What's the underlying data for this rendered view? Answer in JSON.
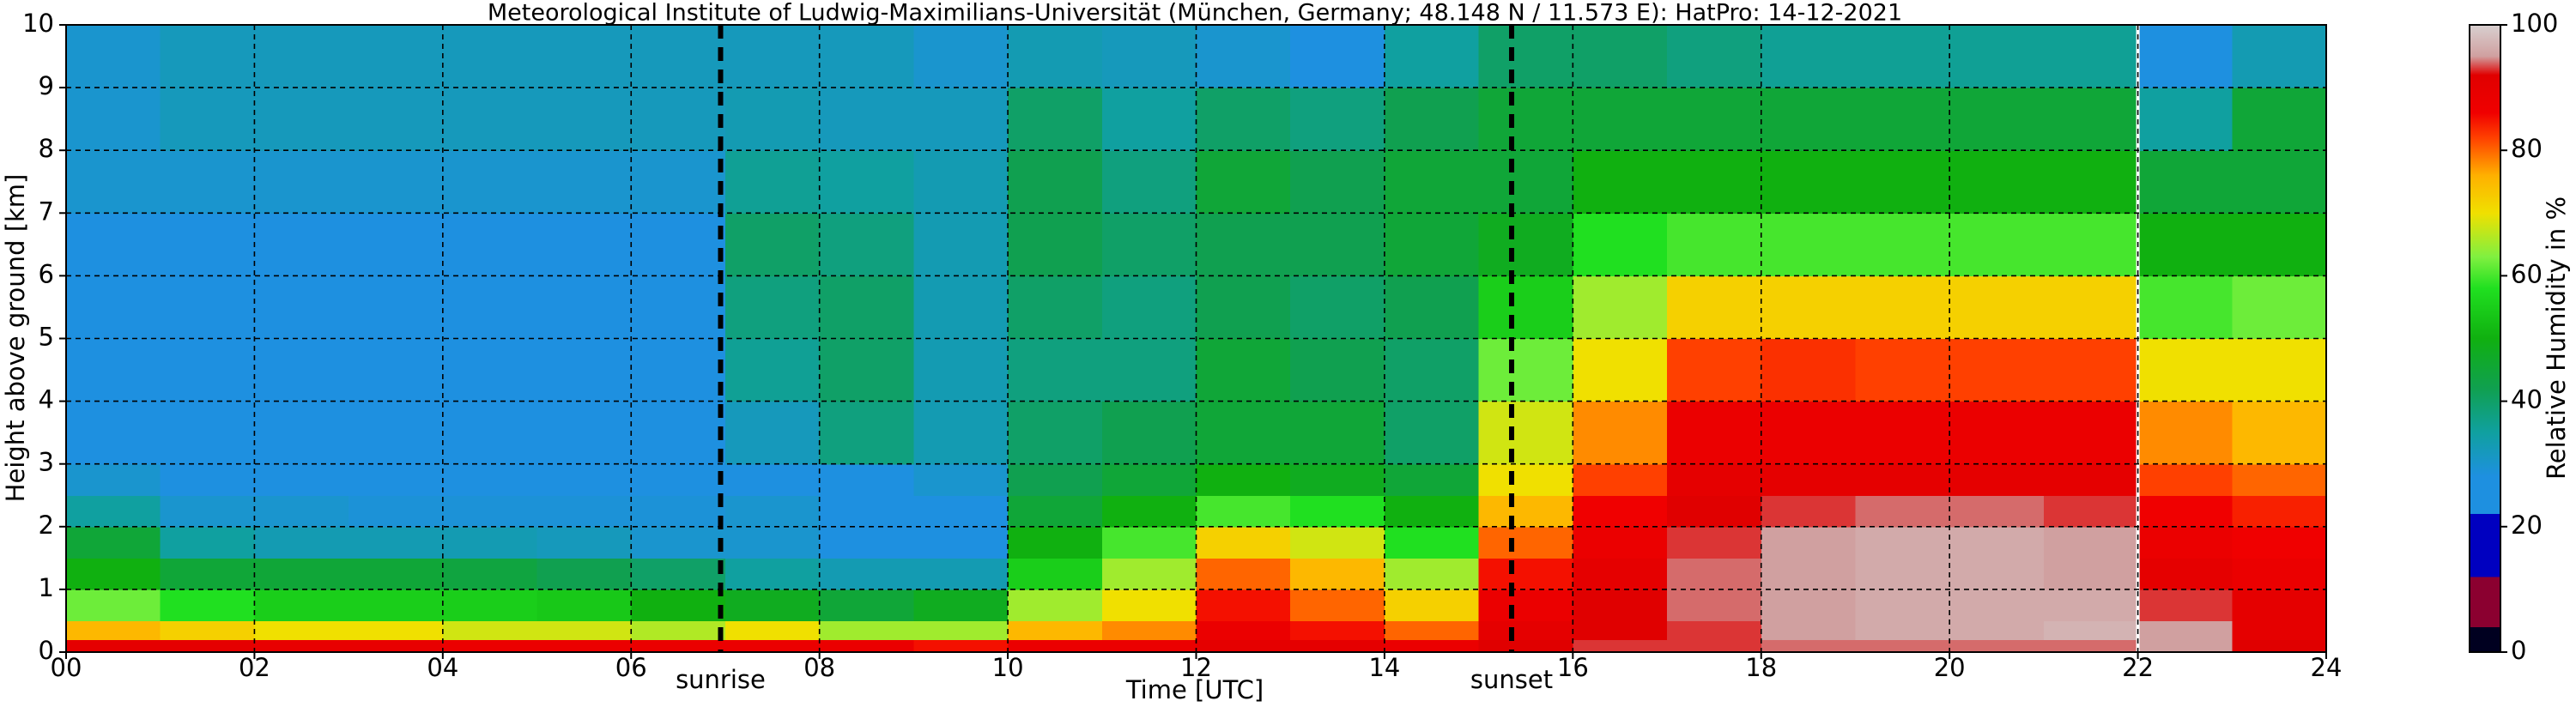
{
  "chart_data": {
    "type": "heatmap",
    "title": "Meteorological Institute of Ludwig-Maximilians-Universität (München, Germany; 48.148 N / 11.573 E):    HatPro: 14-12-2021",
    "xlabel": "Time [UTC]",
    "ylabel": "Height above ground [km]",
    "colorbar_label": "Relative Humidity in %",
    "xlim": [
      0,
      24
    ],
    "ylim": [
      0,
      10
    ],
    "clim": [
      0,
      100
    ],
    "xticks": [
      {
        "value": 0,
        "label": "00"
      },
      {
        "value": 2,
        "label": "02"
      },
      {
        "value": 4,
        "label": "04"
      },
      {
        "value": 6,
        "label": "06"
      },
      {
        "value": 8,
        "label": "08"
      },
      {
        "value": 10,
        "label": "10"
      },
      {
        "value": 12,
        "label": "12"
      },
      {
        "value": 14,
        "label": "14"
      },
      {
        "value": 16,
        "label": "16"
      },
      {
        "value": 18,
        "label": "18"
      },
      {
        "value": 20,
        "label": "20"
      },
      {
        "value": 22,
        "label": "22"
      },
      {
        "value": 24,
        "label": "24"
      }
    ],
    "yticks": [
      0,
      1,
      2,
      3,
      4,
      5,
      6,
      7,
      8,
      9,
      10
    ],
    "cticks": [
      0,
      20,
      40,
      60,
      80,
      100
    ],
    "grid": true,
    "x_edges": [
      0,
      1,
      2,
      3,
      4,
      5,
      6,
      7,
      8,
      9,
      10,
      11,
      12,
      13,
      14,
      15,
      16,
      17,
      18,
      19,
      20,
      21,
      22,
      23,
      24
    ],
    "y_edges": [
      0,
      0.2,
      0.5,
      1,
      1.5,
      2,
      2.5,
      3,
      4,
      5,
      6,
      7,
      8,
      9,
      10
    ],
    "values": [
      [
        90,
        90,
        89,
        89,
        88,
        88,
        88,
        88,
        88,
        85,
        88,
        88,
        90,
        90,
        88,
        92,
        93,
        93,
        94,
        94,
        94,
        94,
        95,
        92
      ],
      [
        75,
        72,
        70,
        70,
        68,
        68,
        66,
        70,
        65,
        65,
        75,
        78,
        88,
        85,
        80,
        90,
        92,
        93,
        95,
        96,
        96,
        97,
        95,
        90
      ],
      [
        62,
        58,
        55,
        55,
        55,
        54,
        50,
        48,
        45,
        48,
        65,
        70,
        85,
        80,
        72,
        88,
        92,
        94,
        95,
        96,
        96,
        96,
        93,
        90
      ],
      [
        50,
        45,
        45,
        45,
        44,
        42,
        40,
        35,
        33,
        33,
        55,
        65,
        80,
        75,
        65,
        85,
        90,
        94,
        95,
        96,
        96,
        95,
        90,
        88
      ],
      [
        45,
        35,
        33,
        33,
        33,
        32,
        30,
        30,
        27,
        28,
        50,
        60,
        72,
        68,
        58,
        80,
        88,
        93,
        95,
        96,
        96,
        95,
        88,
        86
      ],
      [
        35,
        30,
        30,
        29,
        29,
        29,
        29,
        30,
        26,
        28,
        45,
        50,
        60,
        58,
        50,
        75,
        86,
        92,
        93,
        94,
        94,
        93,
        86,
        84
      ],
      [
        30,
        27,
        27,
        27,
        27,
        27,
        27,
        28,
        28,
        30,
        42,
        45,
        50,
        48,
        45,
        70,
        82,
        90,
        90,
        90,
        90,
        90,
        82,
        80
      ],
      [
        28,
        26,
        26,
        26,
        26,
        26,
        26,
        32,
        38,
        33,
        40,
        42,
        45,
        45,
        40,
        68,
        78,
        88,
        88,
        88,
        88,
        88,
        78,
        75
      ],
      [
        27,
        26,
        26,
        26,
        26,
        26,
        26,
        36,
        40,
        33,
        38,
        38,
        45,
        42,
        40,
        62,
        70,
        82,
        83,
        82,
        82,
        82,
        70,
        70
      ],
      [
        27,
        27,
        27,
        27,
        27,
        27,
        27,
        38,
        40,
        33,
        40,
        38,
        42,
        40,
        42,
        55,
        65,
        72,
        72,
        72,
        72,
        72,
        60,
        62
      ],
      [
        28,
        27,
        27,
        27,
        27,
        27,
        27,
        40,
        38,
        33,
        42,
        40,
        42,
        42,
        45,
        48,
        58,
        60,
        60,
        60,
        60,
        60,
        50,
        50
      ],
      [
        30,
        30,
        30,
        30,
        30,
        30,
        30,
        36,
        35,
        33,
        42,
        38,
        45,
        42,
        45,
        45,
        50,
        50,
        50,
        50,
        50,
        50,
        45,
        45
      ],
      [
        30,
        32,
        32,
        32,
        32,
        32,
        32,
        33,
        32,
        32,
        40,
        35,
        40,
        38,
        42,
        45,
        45,
        45,
        45,
        45,
        45,
        45,
        35,
        45
      ],
      [
        30,
        32,
        32,
        32,
        32,
        32,
        32,
        32,
        32,
        30,
        33,
        32,
        30,
        28,
        35,
        40,
        40,
        38,
        36,
        36,
        36,
        36,
        28,
        33
      ]
    ],
    "colorscale": [
      [
        0,
        "#000020"
      ],
      [
        4,
        "#000020"
      ],
      [
        4,
        "#8b0030"
      ],
      [
        12,
        "#8b0030"
      ],
      [
        12,
        "#0000c0"
      ],
      [
        22,
        "#0000c0"
      ],
      [
        22,
        "#1e90e0"
      ],
      [
        28,
        "#1e90e0"
      ],
      [
        35,
        "#10a0a0"
      ],
      [
        42,
        "#10a050"
      ],
      [
        50,
        "#10b010"
      ],
      [
        58,
        "#20e020"
      ],
      [
        63,
        "#80f040"
      ],
      [
        70,
        "#f0e000"
      ],
      [
        76,
        "#ffb000"
      ],
      [
        82,
        "#ff4000"
      ],
      [
        86,
        "#f00000"
      ],
      [
        92,
        "#e00000"
      ],
      [
        95,
        "#d0a0a0"
      ],
      [
        100,
        "#d8d0d0"
      ]
    ],
    "markers": [
      {
        "x": 6.95,
        "label": "sunrise"
      },
      {
        "x": 15.35,
        "label": "sunset"
      }
    ],
    "data_gap_x": [
      22.0
    ]
  }
}
